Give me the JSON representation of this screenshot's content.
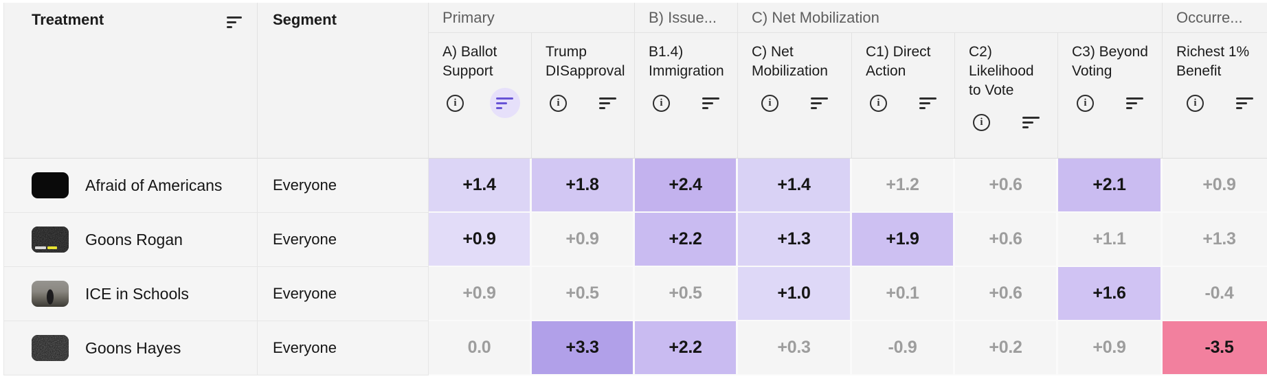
{
  "header": {
    "treatment_label": "Treatment",
    "segment_label": "Segment",
    "groups": [
      {
        "label": "Primary",
        "span": 2
      },
      {
        "label": "B) Issue...",
        "span": 1
      },
      {
        "label": "C) Net Mobilization",
        "span": 4
      },
      {
        "label": "Occurre...",
        "span": 1
      }
    ],
    "metrics": [
      {
        "label": "A) Ballot Support",
        "sort_active": true
      },
      {
        "label": "Trump DISapproval",
        "sort_active": false
      },
      {
        "label": "B1.4) Immigration",
        "sort_active": false
      },
      {
        "label": "C) Net Mobilization",
        "sort_active": false
      },
      {
        "label": "C1) Direct Action",
        "sort_active": false
      },
      {
        "label": "C2) Likelihood to Vote",
        "sort_active": false
      },
      {
        "label": "C3) Beyond Voting",
        "sort_active": false
      },
      {
        "label": "Richest 1% Benefit",
        "sort_active": false
      }
    ],
    "icons": {
      "info": "info-icon",
      "sort": "sort-descending-icon"
    }
  },
  "colors": {
    "accent": "#6753d6",
    "accent_bg": "#e6e0fa",
    "positive_scale_light": "#e2dcf8",
    "positive_scale_dark": "#b1a0e9",
    "negative_bg": "#f2809e"
  },
  "rows": [
    {
      "treatment": "Afraid of Americans",
      "segment": "Everyone",
      "thumb": "black",
      "values": [
        {
          "text": "+1.4",
          "bg": "#dcd5f6",
          "emph": true
        },
        {
          "text": "+1.8",
          "bg": "#d2c7f3",
          "emph": true
        },
        {
          "text": "+2.4",
          "bg": "#c3b2ee",
          "emph": true
        },
        {
          "text": "+1.4",
          "bg": "#d9d2f5",
          "emph": true
        },
        {
          "text": "+1.2",
          "bg": null,
          "emph": false
        },
        {
          "text": "+0.6",
          "bg": null,
          "emph": false
        },
        {
          "text": "+2.1",
          "bg": "#cabcf1",
          "emph": true
        },
        {
          "text": "+0.9",
          "bg": null,
          "emph": false
        }
      ]
    },
    {
      "treatment": "Goons Rogan",
      "segment": "Everyone",
      "thumb": "noise-caption",
      "values": [
        {
          "text": "+0.9",
          "bg": "#e2dcf8",
          "emph": true
        },
        {
          "text": "+0.9",
          "bg": null,
          "emph": false
        },
        {
          "text": "+2.2",
          "bg": "#c9bbf1",
          "emph": true
        },
        {
          "text": "+1.3",
          "bg": "#dbd4f6",
          "emph": true
        },
        {
          "text": "+1.9",
          "bg": "#cdc0f2",
          "emph": true
        },
        {
          "text": "+0.6",
          "bg": null,
          "emph": false
        },
        {
          "text": "+1.1",
          "bg": null,
          "emph": false
        },
        {
          "text": "+1.3",
          "bg": null,
          "emph": false
        }
      ]
    },
    {
      "treatment": "ICE in Schools",
      "segment": "Everyone",
      "thumb": "photo",
      "values": [
        {
          "text": "+0.9",
          "bg": null,
          "emph": false
        },
        {
          "text": "+0.5",
          "bg": null,
          "emph": false
        },
        {
          "text": "+0.5",
          "bg": null,
          "emph": false
        },
        {
          "text": "+1.0",
          "bg": "#ded8f7",
          "emph": true
        },
        {
          "text": "+0.1",
          "bg": null,
          "emph": false
        },
        {
          "text": "+0.6",
          "bg": null,
          "emph": false
        },
        {
          "text": "+1.6",
          "bg": "#d0c3f3",
          "emph": true
        },
        {
          "text": "-0.4",
          "bg": null,
          "emph": false
        }
      ]
    },
    {
      "treatment": "Goons Hayes",
      "segment": "Everyone",
      "thumb": "noise",
      "values": [
        {
          "text": "0.0",
          "bg": null,
          "emph": false
        },
        {
          "text": "+3.3",
          "bg": "#b1a0e9",
          "emph": true
        },
        {
          "text": "+2.2",
          "bg": "#c9bbf1",
          "emph": true
        },
        {
          "text": "+0.3",
          "bg": null,
          "emph": false
        },
        {
          "text": "-0.9",
          "bg": null,
          "emph": false
        },
        {
          "text": "+0.2",
          "bg": null,
          "emph": false
        },
        {
          "text": "+0.9",
          "bg": null,
          "emph": false
        },
        {
          "text": "-3.5",
          "bg": "#f2809e",
          "emph": true
        }
      ]
    }
  ]
}
